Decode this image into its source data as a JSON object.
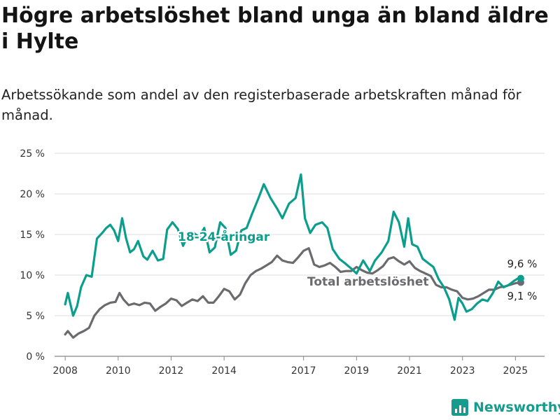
{
  "title": "Högre arbetslöshet bland unga än bland äldre i Hylte",
  "subtitle": "Arbetssökande som andel av den registerbaserade arbetskraften månad för månad.",
  "brand": {
    "name": "Newsworthy",
    "icon": "newsworthy-logo-icon",
    "color": "#169b8c"
  },
  "chart_data": {
    "type": "line",
    "ylim": [
      0,
      25
    ],
    "xlim": [
      2007.6,
      2026.1
    ],
    "y_ticks": [
      0,
      5,
      10,
      15,
      20,
      25
    ],
    "y_tick_labels": [
      "0 %",
      "5 %",
      "10 %",
      "15 %",
      "20 %",
      "25 %"
    ],
    "x_ticks": [
      2008,
      2010,
      2012,
      2014,
      2017,
      2019,
      2021,
      2023,
      2025
    ],
    "x_tick_labels": [
      "2008",
      "2010",
      "2012",
      "2014",
      "2017",
      "2019",
      "2021",
      "2023",
      "2025"
    ],
    "grid": true,
    "colors": {
      "youth": "#0b9e8d",
      "total": "#6b6b6f"
    },
    "series": [
      {
        "name": "18-24-åringar",
        "end_label": "9,6 %",
        "x": [
          2008.0,
          2008.1,
          2008.3,
          2008.45,
          2008.6,
          2008.8,
          2009.0,
          2009.2,
          2009.4,
          2009.55,
          2009.7,
          2009.85,
          2010.0,
          2010.15,
          2010.3,
          2010.45,
          2010.6,
          2010.75,
          2010.95,
          2011.1,
          2011.3,
          2011.5,
          2011.7,
          2011.85,
          2012.05,
          2012.25,
          2012.45,
          2012.65,
          2012.85,
          2013.05,
          2013.25,
          2013.45,
          2013.65,
          2013.85,
          2014.05,
          2014.25,
          2014.45,
          2014.65,
          2014.85,
          2015.05,
          2015.3,
          2015.5,
          2015.75,
          2016.0,
          2016.2,
          2016.45,
          2016.7,
          2016.9,
          2017.05,
          2017.25,
          2017.45,
          2017.7,
          2017.9,
          2018.1,
          2018.35,
          2018.55,
          2018.8,
          2019.0,
          2019.25,
          2019.5,
          2019.7,
          2019.95,
          2020.2,
          2020.4,
          2020.6,
          2020.8,
          2020.95,
          2021.1,
          2021.3,
          2021.5,
          2021.7,
          2021.9,
          2022.1,
          2022.3,
          2022.5,
          2022.7,
          2022.85,
          2023.0,
          2023.15,
          2023.35,
          2023.55,
          2023.75,
          2023.95,
          2024.15,
          2024.35,
          2024.55,
          2024.75,
          2024.95,
          2025.1,
          2025.2
        ],
        "y": [
          6.4,
          7.8,
          5.0,
          6.2,
          8.5,
          10.0,
          9.8,
          14.5,
          15.2,
          15.8,
          16.2,
          15.5,
          14.2,
          17.0,
          14.5,
          12.8,
          13.2,
          14.2,
          12.3,
          11.9,
          13.0,
          11.8,
          12.0,
          15.6,
          16.5,
          15.7,
          13.6,
          15.0,
          15.2,
          14.7,
          15.8,
          12.8,
          13.4,
          16.5,
          15.8,
          12.5,
          13.0,
          15.5,
          15.8,
          17.5,
          19.5,
          21.2,
          19.5,
          18.2,
          17.0,
          18.8,
          19.5,
          22.4,
          17.0,
          15.2,
          16.2,
          16.5,
          15.8,
          13.2,
          12.0,
          11.5,
          10.8,
          10.2,
          11.8,
          10.5,
          11.8,
          12.8,
          14.2,
          17.8,
          16.5,
          13.5,
          17.0,
          13.8,
          13.5,
          12.0,
          11.5,
          11.0,
          9.5,
          8.5,
          7.0,
          4.5,
          7.2,
          6.5,
          5.5,
          5.8,
          6.5,
          7.0,
          6.8,
          7.8,
          9.2,
          8.5,
          8.8,
          9.3,
          9.6,
          9.6
        ]
      },
      {
        "name": "Total arbetslöshet",
        "end_label": "9,1 %",
        "x": [
          2008.0,
          2008.1,
          2008.3,
          2008.5,
          2008.7,
          2008.9,
          2009.1,
          2009.3,
          2009.5,
          2009.7,
          2009.9,
          2010.05,
          2010.2,
          2010.4,
          2010.6,
          2010.8,
          2011.0,
          2011.2,
          2011.4,
          2011.6,
          2011.8,
          2012.0,
          2012.2,
          2012.4,
          2012.6,
          2012.8,
          2013.0,
          2013.2,
          2013.4,
          2013.6,
          2013.8,
          2014.0,
          2014.2,
          2014.4,
          2014.6,
          2014.8,
          2015.0,
          2015.2,
          2015.4,
          2015.6,
          2015.8,
          2016.0,
          2016.2,
          2016.4,
          2016.6,
          2016.8,
          2017.0,
          2017.2,
          2017.4,
          2017.6,
          2017.8,
          2018.0,
          2018.2,
          2018.4,
          2018.6,
          2018.8,
          2019.0,
          2019.2,
          2019.4,
          2019.6,
          2019.8,
          2020.0,
          2020.2,
          2020.4,
          2020.6,
          2020.8,
          2021.0,
          2021.2,
          2021.4,
          2021.6,
          2021.8,
          2022.0,
          2022.2,
          2022.4,
          2022.6,
          2022.8,
          2023.0,
          2023.2,
          2023.4,
          2023.6,
          2023.8,
          2024.0,
          2024.2,
          2024.4,
          2024.6,
          2024.8,
          2025.0,
          2025.2
        ],
        "y": [
          2.7,
          3.1,
          2.3,
          2.8,
          3.1,
          3.5,
          5.0,
          5.8,
          6.3,
          6.6,
          6.7,
          7.8,
          7.0,
          6.3,
          6.5,
          6.3,
          6.6,
          6.5,
          5.6,
          6.1,
          6.5,
          7.1,
          6.9,
          6.2,
          6.6,
          7.0,
          6.8,
          7.4,
          6.6,
          6.6,
          7.4,
          8.3,
          8.0,
          7.0,
          7.6,
          9.0,
          10.0,
          10.5,
          10.8,
          11.2,
          11.6,
          12.4,
          11.8,
          11.6,
          11.5,
          12.2,
          13.0,
          13.3,
          11.3,
          11.0,
          11.2,
          11.5,
          11.0,
          10.4,
          10.5,
          10.5,
          11.0,
          10.6,
          10.3,
          10.2,
          10.6,
          11.1,
          12.0,
          12.2,
          11.7,
          11.3,
          11.7,
          10.9,
          10.5,
          10.2,
          9.9,
          8.8,
          8.5,
          8.5,
          8.2,
          8.0,
          7.2,
          7.0,
          7.1,
          7.4,
          7.8,
          8.2,
          8.2,
          8.5,
          8.6,
          8.8,
          9.0,
          9.1
        ]
      }
    ]
  }
}
